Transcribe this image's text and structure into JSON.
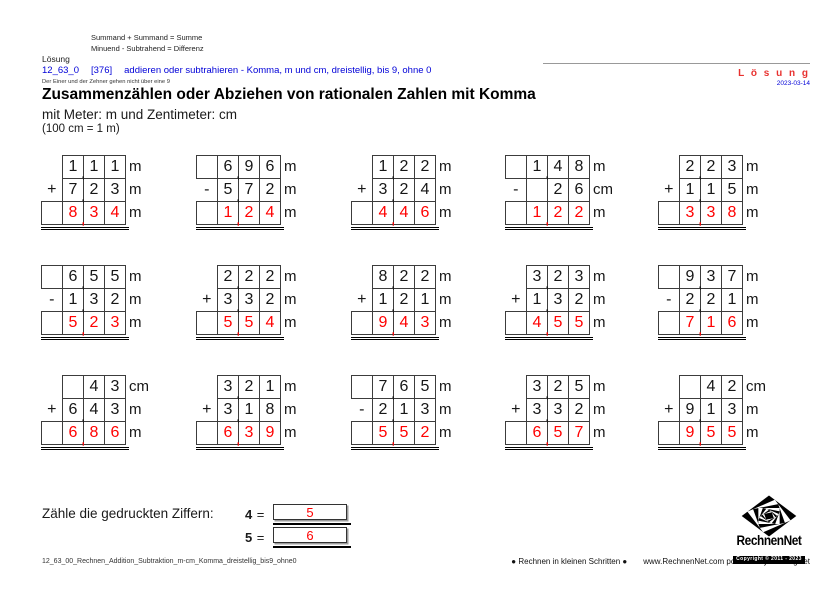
{
  "page": {
    "formula_hint_1": "Summand + Summand = Summe",
    "formula_hint_2": "Minuend - Subtrahend = Differenz",
    "loesung_label": "Lösung",
    "id_code": "12_63_0",
    "id_number": "[376]",
    "id_title": "addieren oder subtrahieren - Komma, m und cm, dreistellig, bis 9, ohne 0",
    "small_note": "Der Einer und der Zehner gehen nicht über eine 9",
    "solution_label": "L ö s u n g",
    "date": "2023-03-14",
    "title": "Zusammenzählen oder Abziehen von rationalen Zahlen mit Komma",
    "subtitle": "mit Meter: m und Zentimeter: cm",
    "subtitle_note": "(100 cm = 1 m)"
  },
  "colors": {
    "accent_blue": "#0000d8",
    "result_red": "#ff0000",
    "solution_red": "#e8312f"
  },
  "problems": [
    {
      "sign": "+",
      "top": {
        "lead_box": false,
        "cells": [
          "1,",
          "1",
          "1"
        ],
        "unit": "m"
      },
      "mid": {
        "cells": [
          "7,",
          "2",
          "3"
        ],
        "unit": "m"
      },
      "result": {
        "cells": [
          "8,",
          "3",
          "4"
        ],
        "unit": "m"
      }
    },
    {
      "sign": "-",
      "top": {
        "lead_box": true,
        "cells": [
          "6,",
          "9",
          "6"
        ],
        "unit": "m"
      },
      "mid": {
        "cells": [
          "5,",
          "7",
          "2"
        ],
        "unit": "m"
      },
      "result": {
        "cells": [
          "1,",
          "2",
          "4"
        ],
        "unit": "m"
      }
    },
    {
      "sign": "+",
      "top": {
        "lead_box": false,
        "cells": [
          "1,",
          "2",
          "2"
        ],
        "unit": "m"
      },
      "mid": {
        "cells": [
          "3,",
          "2",
          "4"
        ],
        "unit": "m"
      },
      "result": {
        "cells": [
          "4,",
          "4",
          "6"
        ],
        "unit": "m"
      }
    },
    {
      "sign": "-",
      "top": {
        "lead_box": true,
        "cells": [
          "1,",
          "4",
          "8"
        ],
        "unit": "m"
      },
      "mid": {
        "cells": [
          "",
          "2",
          "6"
        ],
        "unit": "cm"
      },
      "result": {
        "cells": [
          "1,",
          "2",
          "2"
        ],
        "unit": "m"
      }
    },
    {
      "sign": "+",
      "top": {
        "lead_box": false,
        "cells": [
          "2,",
          "2",
          "3"
        ],
        "unit": "m"
      },
      "mid": {
        "cells": [
          "1,",
          "1",
          "5"
        ],
        "unit": "m"
      },
      "result": {
        "cells": [
          "3,",
          "3",
          "8"
        ],
        "unit": "m"
      }
    },
    {
      "sign": "-",
      "top": {
        "lead_box": true,
        "cells": [
          "6,",
          "5",
          "5"
        ],
        "unit": "m"
      },
      "mid": {
        "cells": [
          "1,",
          "3",
          "2"
        ],
        "unit": "m"
      },
      "result": {
        "cells": [
          "5,",
          "2",
          "3"
        ],
        "unit": "m"
      }
    },
    {
      "sign": "+",
      "top": {
        "lead_box": false,
        "cells": [
          "2,",
          "2",
          "2"
        ],
        "unit": "m"
      },
      "mid": {
        "cells": [
          "3,",
          "3",
          "2"
        ],
        "unit": "m"
      },
      "result": {
        "cells": [
          "5,",
          "5",
          "4"
        ],
        "unit": "m"
      }
    },
    {
      "sign": "+",
      "top": {
        "lead_box": false,
        "cells": [
          "8,",
          "2",
          "2"
        ],
        "unit": "m"
      },
      "mid": {
        "cells": [
          "1,",
          "2",
          "1"
        ],
        "unit": "m"
      },
      "result": {
        "cells": [
          "9,",
          "4",
          "3"
        ],
        "unit": "m"
      }
    },
    {
      "sign": "+",
      "top": {
        "lead_box": false,
        "cells": [
          "3,",
          "2",
          "3"
        ],
        "unit": "m"
      },
      "mid": {
        "cells": [
          "1,",
          "3",
          "2"
        ],
        "unit": "m"
      },
      "result": {
        "cells": [
          "4,",
          "5",
          "5"
        ],
        "unit": "m"
      }
    },
    {
      "sign": "-",
      "top": {
        "lead_box": true,
        "cells": [
          "9,",
          "3",
          "7"
        ],
        "unit": "m"
      },
      "mid": {
        "cells": [
          "2,",
          "2",
          "1"
        ],
        "unit": "m"
      },
      "result": {
        "cells": [
          "7,",
          "1",
          "6"
        ],
        "unit": "m"
      }
    },
    {
      "sign": "+",
      "top": {
        "lead_box": false,
        "cells": [
          "",
          "4",
          "3"
        ],
        "unit": "cm"
      },
      "mid": {
        "cells": [
          "6,",
          "4",
          "3"
        ],
        "unit": "m"
      },
      "result": {
        "cells": [
          "6,",
          "8",
          "6"
        ],
        "unit": "m"
      }
    },
    {
      "sign": "+",
      "top": {
        "lead_box": false,
        "cells": [
          "3,",
          "2",
          "1"
        ],
        "unit": "m"
      },
      "mid": {
        "cells": [
          "3,",
          "1",
          "8"
        ],
        "unit": "m"
      },
      "result": {
        "cells": [
          "6,",
          "3",
          "9"
        ],
        "unit": "m"
      }
    },
    {
      "sign": "-",
      "top": {
        "lead_box": true,
        "cells": [
          "7,",
          "6",
          "5"
        ],
        "unit": "m"
      },
      "mid": {
        "cells": [
          "2,",
          "1",
          "3"
        ],
        "unit": "m"
      },
      "result": {
        "cells": [
          "5,",
          "5",
          "2"
        ],
        "unit": "m"
      }
    },
    {
      "sign": "+",
      "top": {
        "lead_box": false,
        "cells": [
          "3,",
          "2",
          "5"
        ],
        "unit": "m"
      },
      "mid": {
        "cells": [
          "3,",
          "3",
          "2"
        ],
        "unit": "m"
      },
      "result": {
        "cells": [
          "6,",
          "5",
          "7"
        ],
        "unit": "m"
      }
    },
    {
      "sign": "+",
      "top": {
        "lead_box": false,
        "cells": [
          "",
          "4",
          "2"
        ],
        "unit": "cm"
      },
      "mid": {
        "cells": [
          "9,",
          "1",
          "3"
        ],
        "unit": "m"
      },
      "result": {
        "cells": [
          "9,",
          "5",
          "5"
        ],
        "unit": "m"
      }
    }
  ],
  "count_section": {
    "label": "Zähle die gedruckten Ziffern:",
    "rows": [
      {
        "digit": "4",
        "eq": "=",
        "count": "5"
      },
      {
        "digit": "5",
        "eq": "=",
        "count": "6"
      }
    ]
  },
  "footer": {
    "left": "12_63_00_Rechnen_Addition_Subtraktion_m-cm_Komma_dreistellig_bis9_ohne0",
    "slogan": "● Rechnen in kleinen Schritten ●",
    "site": "www.RechnenNet.com powered by KolbergNet",
    "logo_text": "RechnenNet",
    "copyright": "Copyright © 2011 - 2023"
  }
}
